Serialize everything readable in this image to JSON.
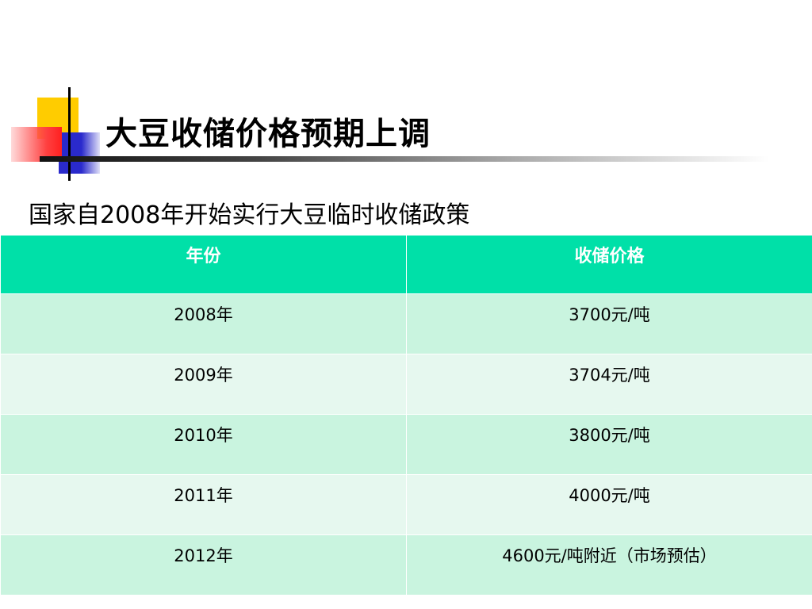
{
  "slide": {
    "title": "大豆收储价格预期上调",
    "subtitle": "国家自2008年开始实行大豆临时收储政策"
  },
  "table": {
    "headers": [
      "年份",
      "收储价格"
    ],
    "rows": [
      {
        "year": "2008年",
        "price": "3700元/吨"
      },
      {
        "year": "2009年",
        "price": "3704元/吨"
      },
      {
        "year": "2010年",
        "price": "3800元/吨"
      },
      {
        "year": "2011年",
        "price": "4000元/吨"
      },
      {
        "year": "2012年",
        "price": "4600元/吨附近（市场预估）"
      }
    ]
  },
  "colors": {
    "header_bg": "#00e0a8",
    "row_odd_bg": "#c9f4df",
    "row_even_bg": "#e6f8ef",
    "accent_yellow": "#ffcc00",
    "accent_blue": "#2a2acc",
    "accent_red": "#ff4040"
  }
}
